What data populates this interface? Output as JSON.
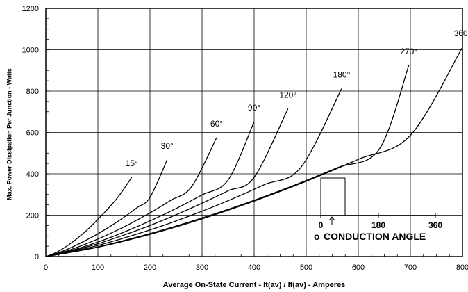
{
  "chart_data": {
    "type": "line",
    "xlabel": "Average On-State Current - It(av) / If(av) - Amperes",
    "ylabel": "Max. Power Dissipation Per Junction - Watts_",
    "xlim": [
      0,
      800
    ],
    "ylim": [
      0,
      1200
    ],
    "x_ticks": [
      "0",
      "100",
      "200",
      "300",
      "400",
      "500",
      "600",
      "700",
      "800"
    ],
    "y_ticks": [
      "0",
      "200",
      "400",
      "600",
      "800",
      "1000",
      "1200"
    ],
    "grid": true,
    "series": [
      {
        "name": "15°",
        "x": [
          0,
          20,
          40,
          60,
          80,
          100,
          120,
          140,
          165
        ],
        "y": [
          0,
          20,
          50,
          87,
          130,
          180,
          233,
          292,
          383
        ]
      },
      {
        "name": "30°",
        "x": [
          0,
          25,
          50,
          75,
          100,
          125,
          150,
          175,
          200,
          233
        ],
        "y": [
          0,
          19,
          45,
          76,
          110,
          148,
          190,
          236,
          286,
          468
        ]
      },
      {
        "name": "60°",
        "x": [
          0,
          40,
          80,
          120,
          160,
          200,
          240,
          280,
          328
        ],
        "y": [
          0,
          27,
          64,
          107,
          156,
          211,
          272,
          338,
          575
        ]
      },
      {
        "name": "90°",
        "x": [
          0,
          50,
          100,
          150,
          200,
          250,
          300,
          350,
          400
        ],
        "y": [
          0,
          30,
          70,
          118,
          172,
          232,
          298,
          370,
          652
        ]
      },
      {
        "name": "120°",
        "x": [
          0,
          50,
          100,
          150,
          200,
          250,
          300,
          350,
          400,
          465
        ],
        "y": [
          0,
          27,
          62,
          104,
          150,
          202,
          258,
          318,
          383,
          715
        ]
      },
      {
        "name": "180°",
        "x": [
          0,
          70,
          140,
          210,
          280,
          350,
          420,
          490,
          568
        ],
        "y": [
          0,
          35,
          82,
          137,
          200,
          270,
          348,
          432,
          812
        ]
      },
      {
        "name": "270°",
        "x": [
          0,
          80,
          160,
          240,
          320,
          400,
          480,
          560,
          640,
          697
        ],
        "y": [
          0,
          36,
          84,
          140,
          203,
          272,
          348,
          430,
          518,
          925
        ]
      },
      {
        "name": "360°",
        "x": [
          0,
          100,
          200,
          300,
          400,
          500,
          600,
          700,
          800
        ],
        "y": [
          0,
          45,
          107,
          182,
          268,
          364,
          470,
          586,
          1012
        ]
      }
    ],
    "inset": {
      "ticks": [
        "0",
        "180",
        "360"
      ],
      "title": "CONDUCTION ANGLE",
      "degree_symbol": "o"
    }
  }
}
